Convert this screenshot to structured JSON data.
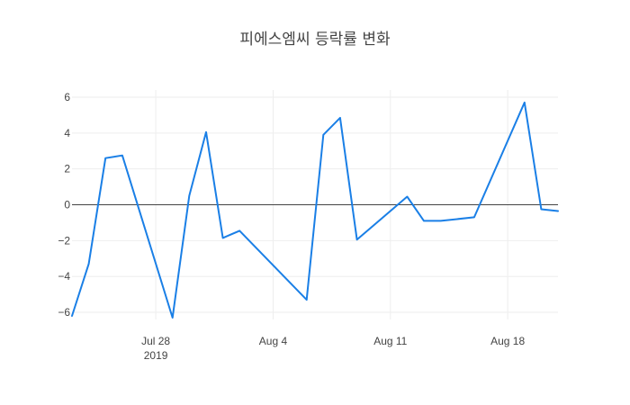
{
  "chart_data": {
    "type": "line",
    "title": "피에스엠씨 등락률 변화",
    "xlabel": "",
    "ylabel": "",
    "x_type": "date",
    "xlim": [
      "2019-07-23",
      "2019-08-21"
    ],
    "ylim": [
      -6.4,
      6.4
    ],
    "grid": true,
    "zero_line": true,
    "line_color": "#1a7fe6",
    "x_ticks": [
      {
        "value": "2019-07-28",
        "label": "Jul 28",
        "sublabel": "2019"
      },
      {
        "value": "2019-08-04",
        "label": "Aug 4",
        "sublabel": ""
      },
      {
        "value": "2019-08-11",
        "label": "Aug 11",
        "sublabel": ""
      },
      {
        "value": "2019-08-18",
        "label": "Aug 18",
        "sublabel": ""
      }
    ],
    "y_ticks": [
      {
        "value": 6,
        "label": "6"
      },
      {
        "value": 4,
        "label": "4"
      },
      {
        "value": 2,
        "label": "2"
      },
      {
        "value": 0,
        "label": "0"
      },
      {
        "value": -2,
        "label": "−2"
      },
      {
        "value": -4,
        "label": "−4"
      },
      {
        "value": -6,
        "label": "−6"
      }
    ],
    "series": [
      {
        "name": "",
        "x": [
          "2019-07-23",
          "2019-07-24",
          "2019-07-25",
          "2019-07-26",
          "2019-07-29",
          "2019-07-30",
          "2019-07-31",
          "2019-08-01",
          "2019-08-02",
          "2019-08-06",
          "2019-08-07",
          "2019-08-08",
          "2019-08-09",
          "2019-08-12",
          "2019-08-13",
          "2019-08-14",
          "2019-08-16",
          "2019-08-19",
          "2019-08-20",
          "2019-08-21"
        ],
        "y": [
          -6.2,
          -3.3,
          2.6,
          2.75,
          -6.3,
          0.5,
          4.05,
          -1.85,
          -1.45,
          -5.3,
          3.9,
          4.85,
          -1.95,
          0.45,
          -0.9,
          -0.9,
          -0.7,
          5.7,
          -0.25,
          -0.35
        ]
      }
    ]
  }
}
